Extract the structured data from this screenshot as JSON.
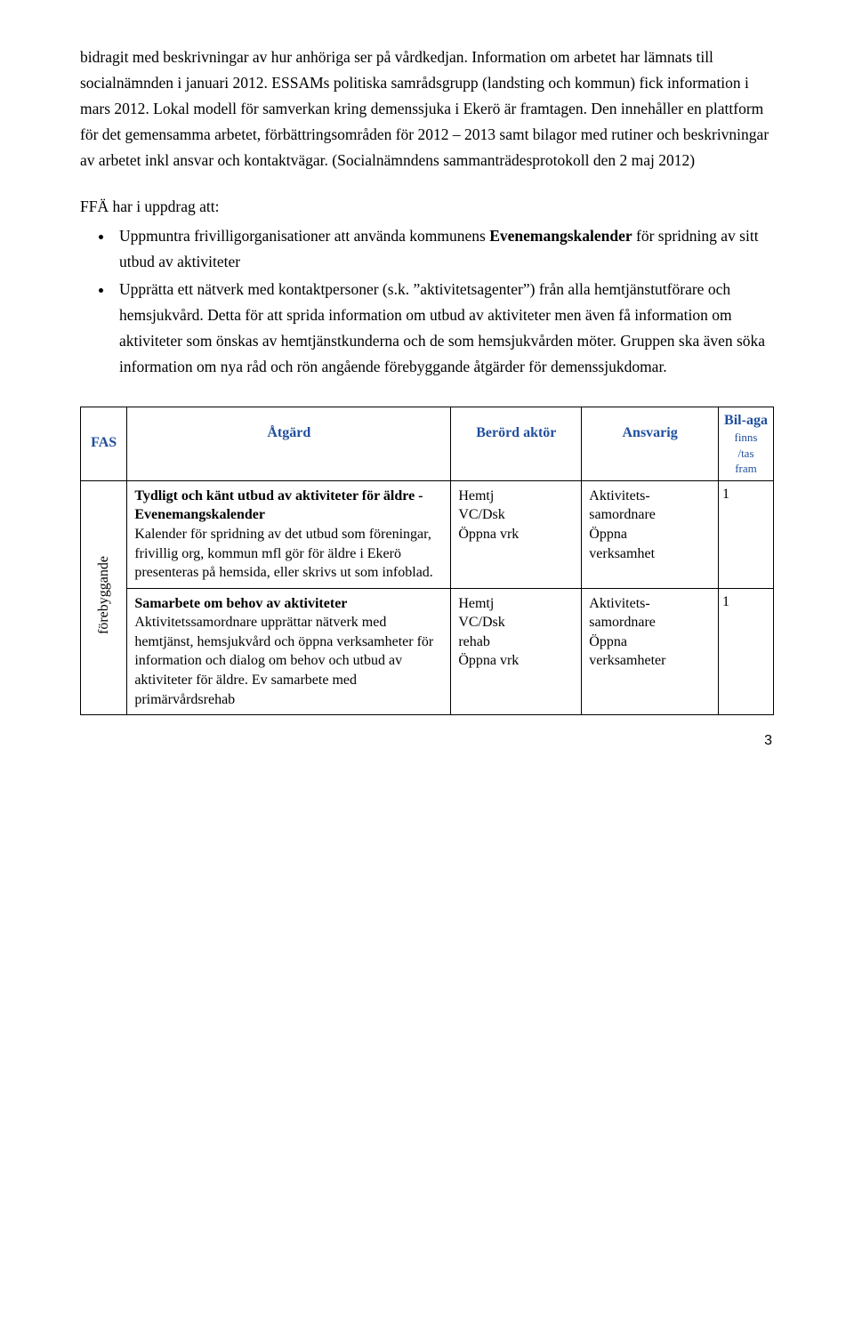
{
  "para1": "bidragit med beskrivningar av hur anhöriga ser på vårdkedjan. Information om arbetet har lämnats till socialnämnden i januari 2012. ESSAMs politiska samrådsgrupp (landsting och kommun) fick information i mars 2012. Lokal modell för samverkan kring demenssjuka i Ekerö är framtagen. Den innehåller en plattform för det gemensamma arbetet, förbättringsområden för 2012 – 2013 samt bilagor med rutiner och beskrivningar av arbetet inkl ansvar och kontaktvägar. (Socialnämndens sammanträdesprotokoll den 2 maj 2012)",
  "heading1": "FFÄ har i uppdrag att:",
  "bullet1_a": "Uppmuntra frivilligorganisationer att använda kommunens ",
  "bullet1_b": "Evenemangskalender",
  "bullet1_c": " för spridning av sitt utbud av aktiviteter",
  "bullet2": "Upprätta ett nätverk med kontaktpersoner (s.k. ”aktivitetsagenter”) från alla hemtjänstutförare och hemsjukvård. Detta för att sprida information om utbud av aktiviteter men även få information om aktiviteter som önskas av hemtjänstkunderna och de som hemsjukvården möter. Gruppen ska även söka information om nya råd och rön angående förebyggande åtgärder för demenssjukdomar.",
  "table": {
    "headers": {
      "fas": "FAS",
      "action": "Åtgärd",
      "actor": "Berörd aktör",
      "resp": "Ansvarig",
      "bil_main": "Bil-aga",
      "bil_sub1": "finns",
      "bil_sub2": "/tas",
      "bil_sub3": "fram"
    },
    "rot_label": "förebyggande",
    "rows": [
      {
        "action_title": "Tydligt och känt utbud av aktiviteter för äldre - Evenemangskalender",
        "action_body": "Kalender för spridning av det utbud som föreningar, frivillig org, kommun mfl gör för äldre i Ekerö presenteras  på hemsida, eller skrivs ut som infoblad.",
        "actor_l1": "Hemtj",
        "actor_l2": "VC/Dsk",
        "actor_l3": "Öppna vrk",
        "resp_l1": "Aktivitets-",
        "resp_l2": "samordnare",
        "resp_l3": "Öppna",
        "resp_l4": "verksamhet",
        "bil": "1"
      },
      {
        "action_title": "Samarbete om behov av aktiviteter",
        "action_body": "Aktivitetssamordnare upprättar nätverk med hemtjänst, hemsjukvård och öppna verksamheter för information och dialog om behov och utbud av aktiviteter för äldre. Ev samarbete med primärvårdsrehab",
        "actor_l1": "Hemtj",
        "actor_l2": "VC/Dsk",
        "actor_l3": "rehab",
        "actor_l4": "Öppna vrk",
        "resp_l1": "Aktivitets-",
        "resp_l2": "samordnare",
        "resp_l3": "Öppna",
        "resp_l4": "verksamheter",
        "bil": "1"
      }
    ]
  },
  "pagenum": "3"
}
